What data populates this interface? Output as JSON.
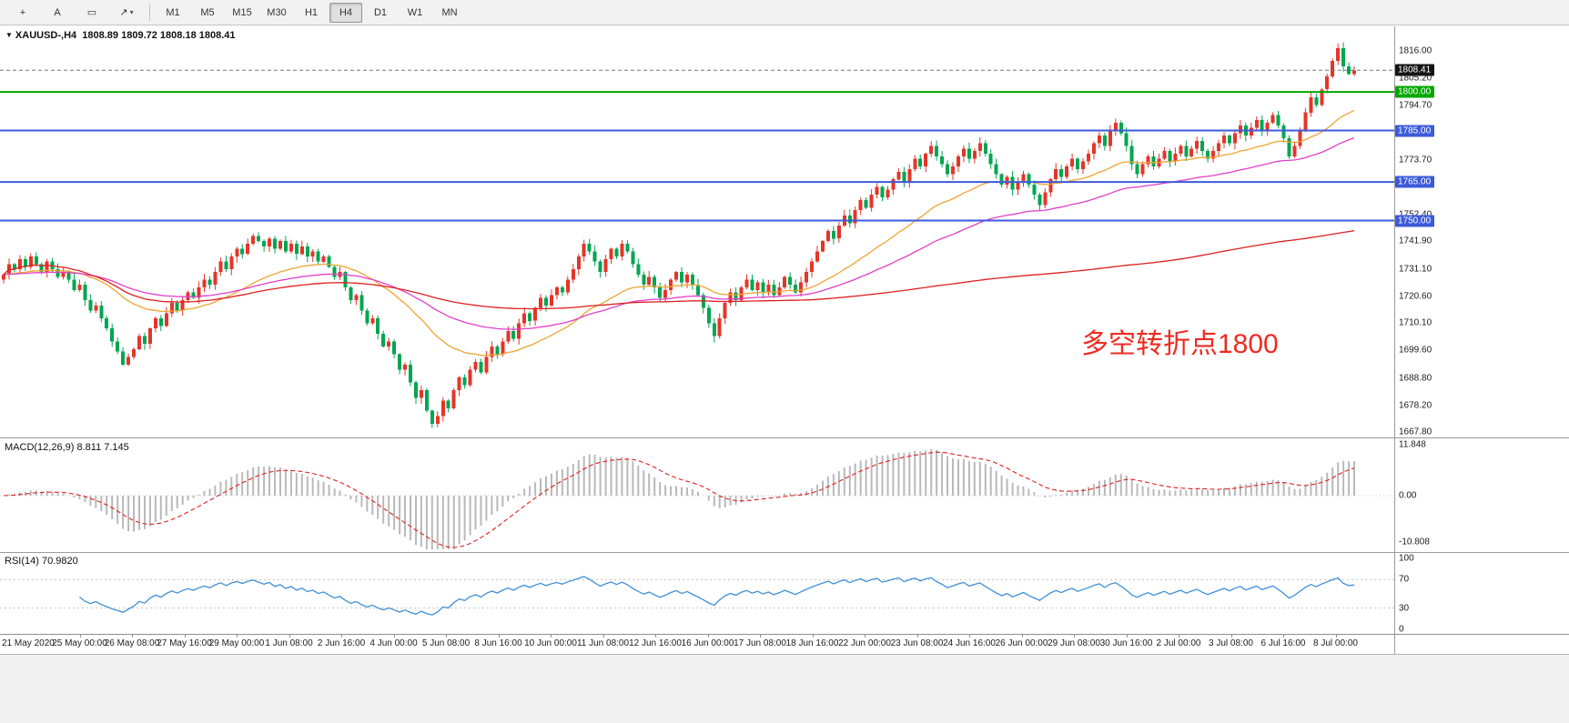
{
  "toolbar": {
    "tools": [
      {
        "id": "crosshair-tool",
        "glyph": "+"
      },
      {
        "id": "text-tool",
        "glyph": "A"
      },
      {
        "id": "label-tool",
        "glyph": "▭"
      },
      {
        "id": "arrows-tool",
        "glyph": "↗"
      }
    ],
    "timeframes": [
      "M1",
      "M5",
      "M15",
      "M30",
      "H1",
      "H4",
      "D1",
      "W1",
      "MN"
    ],
    "active_timeframe": "H4"
  },
  "header": {
    "dropdown_icon": "▼",
    "symbol_text": "XAUUSD-,H4",
    "ohlc_text": "1808.89 1809.72 1808.18 1808.41"
  },
  "chart_data": {
    "type": "candlestick",
    "symbol": "XAUUSD-",
    "timeframe": "H4",
    "bull_color": "#e53528",
    "bear_color": "#00a651",
    "first_open": 1727,
    "closes": [
      1729,
      1733,
      1731,
      1735,
      1732,
      1736,
      1733,
      1730,
      1734,
      1731,
      1728,
      1730,
      1727,
      1723,
      1725,
      1719,
      1715,
      1717,
      1712,
      1708,
      1703,
      1699,
      1694,
      1697,
      1700,
      1705,
      1702,
      1708,
      1712,
      1709,
      1714,
      1718,
      1715,
      1719,
      1722,
      1720,
      1724,
      1727,
      1725,
      1730,
      1734,
      1731,
      1736,
      1739,
      1737,
      1741,
      1744,
      1742,
      1740,
      1743,
      1739,
      1742,
      1738,
      1741,
      1737,
      1740,
      1736,
      1738,
      1734,
      1736,
      1732,
      1728,
      1730,
      1724,
      1719,
      1721,
      1715,
      1710,
      1712,
      1706,
      1701,
      1703,
      1698,
      1692,
      1694,
      1687,
      1681,
      1684,
      1676,
      1671,
      1674,
      1680,
      1677,
      1684,
      1689,
      1686,
      1692,
      1695,
      1691,
      1697,
      1701,
      1698,
      1703,
      1707,
      1704,
      1710,
      1714,
      1711,
      1716,
      1720,
      1717,
      1721,
      1724,
      1722,
      1727,
      1731,
      1736,
      1741,
      1738,
      1734,
      1730,
      1735,
      1739,
      1736,
      1741,
      1738,
      1733,
      1729,
      1725,
      1728,
      1724,
      1720,
      1723,
      1727,
      1730,
      1726,
      1729,
      1725,
      1721,
      1716,
      1710,
      1705,
      1712,
      1718,
      1722,
      1719,
      1724,
      1727,
      1723,
      1726,
      1722,
      1725,
      1721,
      1724,
      1728,
      1725,
      1722,
      1726,
      1730,
      1734,
      1738,
      1742,
      1746,
      1743,
      1748,
      1752,
      1749,
      1754,
      1758,
      1755,
      1760,
      1763,
      1759,
      1762,
      1766,
      1769,
      1765,
      1770,
      1774,
      1771,
      1776,
      1779,
      1775,
      1772,
      1768,
      1771,
      1775,
      1778,
      1774,
      1777,
      1780,
      1776,
      1772,
      1768,
      1764,
      1767,
      1762,
      1765,
      1768,
      1764,
      1760,
      1756,
      1761,
      1766,
      1770,
      1767,
      1771,
      1774,
      1770,
      1773,
      1776,
      1780,
      1783,
      1779,
      1785,
      1788,
      1784,
      1779,
      1772,
      1768,
      1772,
      1775,
      1771,
      1774,
      1777,
      1773,
      1776,
      1779,
      1775,
      1778,
      1781,
      1777,
      1774,
      1777,
      1780,
      1783,
      1780,
      1784,
      1787,
      1783,
      1786,
      1789,
      1785,
      1788,
      1791,
      1787,
      1782,
      1775,
      1779,
      1785,
      1792,
      1798,
      1795,
      1801,
      1806,
      1812,
      1817,
      1810,
      1807,
      1808.41
    ],
    "price_axis_ticks": [
      "1816.00",
      "1805.20",
      "1794.70",
      "1773.70",
      "1752.40",
      "1741.90",
      "1731.10",
      "1720.60",
      "1710.10",
      "1699.60",
      "1688.80",
      "1678.20",
      "1667.80"
    ],
    "current_price": "1808.41",
    "current_price_color": "#141414",
    "hlines": [
      {
        "price": 1800.0,
        "label": "1800.00",
        "color": "#00a800"
      },
      {
        "price": 1785.0,
        "label": "1785.00",
        "color": "#3c5bd8"
      },
      {
        "price": 1765.0,
        "label": "1765.00",
        "color": "#3c5bd8"
      },
      {
        "price": 1750.0,
        "label": "1750.00",
        "color": "#3c5bd8"
      }
    ],
    "overlays": [
      {
        "name": "ma-fast",
        "type": "ema",
        "period": 30,
        "color": "#efa431"
      },
      {
        "name": "ma-mid",
        "type": "ema",
        "period": 65,
        "color": "#e040c8"
      },
      {
        "name": "ma-slow",
        "type": "sma",
        "period": 200,
        "color": "#dd2020"
      }
    ],
    "indicators": [
      {
        "title": "MACD(12,26,9)",
        "values_text": "8.811 7.145",
        "axis_ticks": [
          "11.848",
          "0.00",
          "-10.808"
        ],
        "histogram_color": "#b9b9b9",
        "signal_color": "#e02020"
      },
      {
        "title": "RSI(14)",
        "values_text": "70.9820",
        "axis_ticks": [
          "100",
          "70",
          "30",
          "0"
        ],
        "line_color": "#3e8fd8",
        "levels": [
          70,
          30
        ]
      }
    ],
    "time_labels": [
      "21 May 2020",
      "25 May 00:00",
      "26 May 08:00",
      "27 May 16:00",
      "29 May 00:00",
      "1 Jun 08:00",
      "2 Jun 16:00",
      "4 Jun 00:00",
      "5 Jun 08:00",
      "8 Jun 16:00",
      "10 Jun 00:00",
      "11 Jun 08:00",
      "12 Jun 16:00",
      "16 Jun 00:00",
      "17 Jun 08:00",
      "18 Jun 16:00",
      "22 Jun 00:00",
      "23 Jun 08:00",
      "24 Jun 16:00",
      "26 Jun 00:00",
      "29 Jun 08:00",
      "30 Jun 16:00",
      "2 Jul 00:00",
      "3 Jul 08:00",
      "6 Jul 16:00",
      "8 Jul 00:00"
    ],
    "annotation": {
      "text": "多空转折点1800",
      "color": "#ee2b21"
    }
  }
}
